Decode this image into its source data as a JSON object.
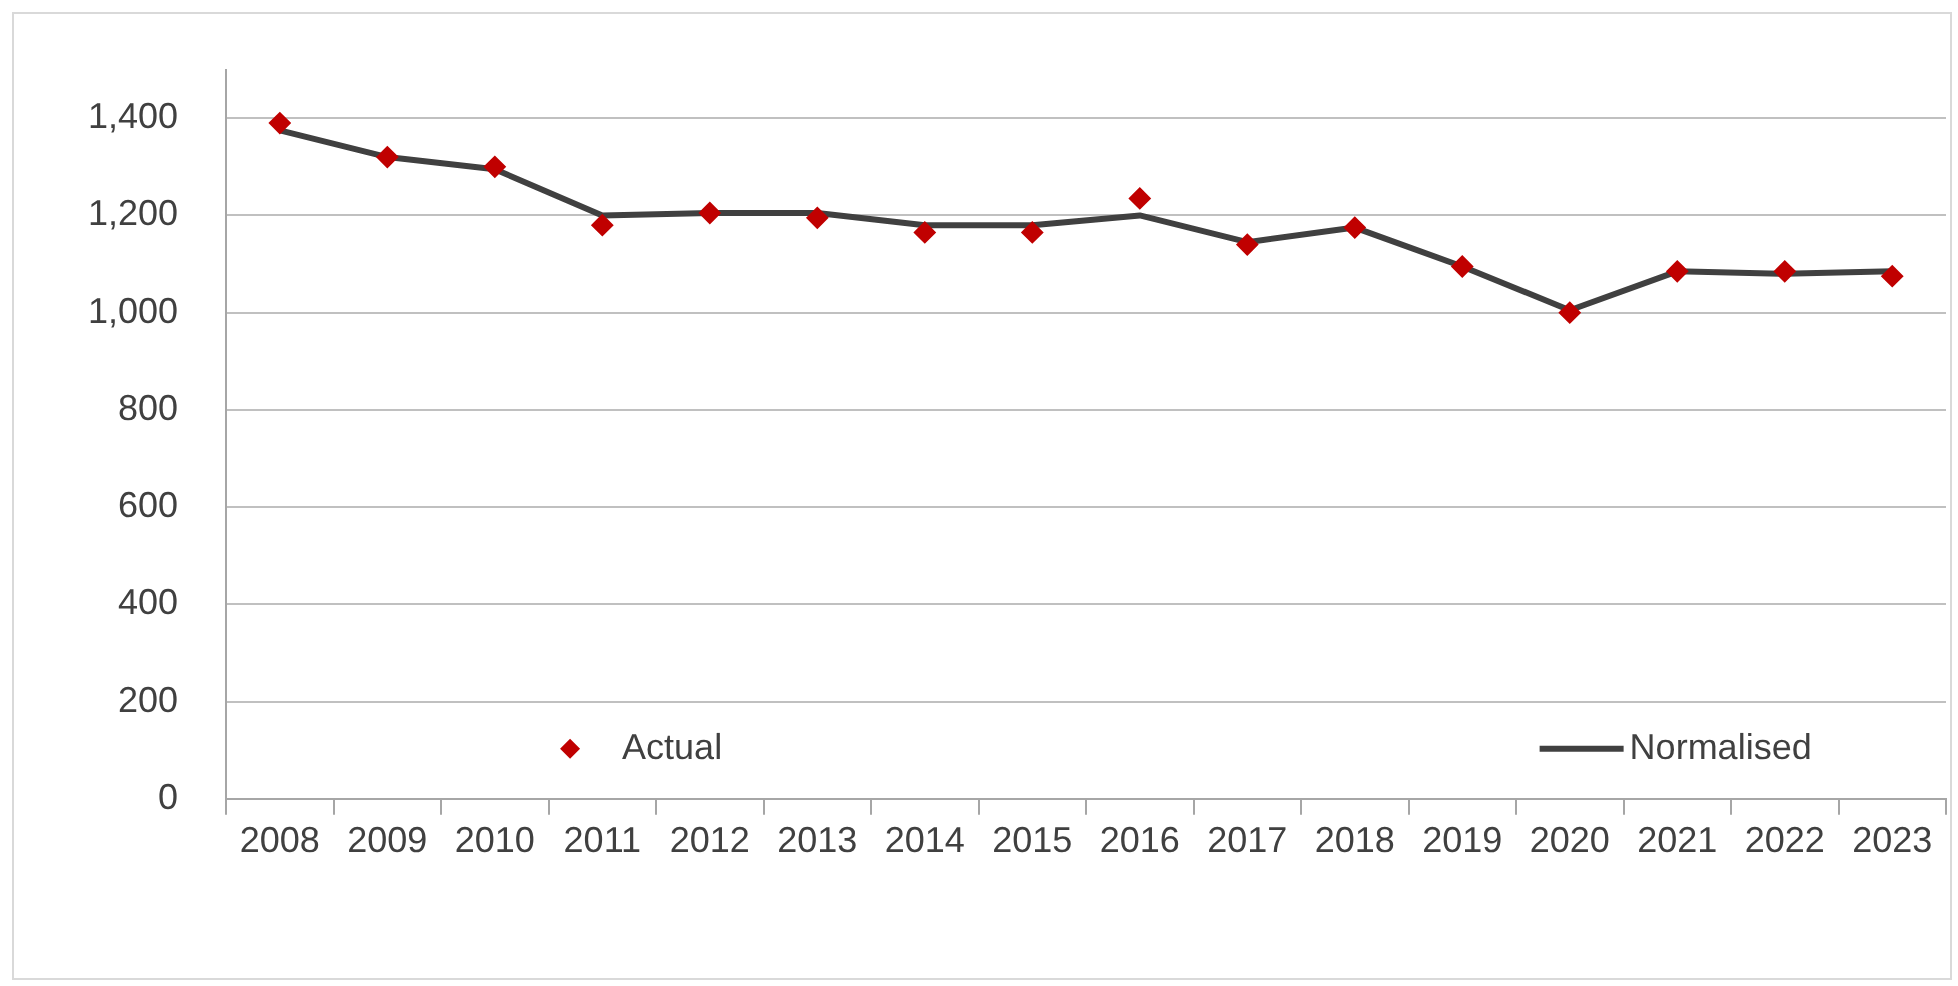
{
  "chart_data": {
    "type": "line",
    "categories": [
      "2008",
      "2009",
      "2010",
      "2011",
      "2012",
      "2013",
      "2014",
      "2015",
      "2016",
      "2017",
      "2018",
      "2019",
      "2020",
      "2021",
      "2022",
      "2023"
    ],
    "series": [
      {
        "name": "Actual",
        "type": "scatter",
        "color": "#c00000",
        "marker": "diamond",
        "values": [
          1390,
          1320,
          1300,
          1180,
          1205,
          1195,
          1165,
          1165,
          1235,
          1140,
          1175,
          1095,
          1000,
          1085,
          1085,
          1075
        ]
      },
      {
        "name": "Normalised",
        "color": "#404040",
        "marker": "none",
        "line_style": "solid",
        "values": [
          1375,
          1320,
          1295,
          1200,
          1205,
          1205,
          1180,
          1180,
          1200,
          1145,
          1175,
          1095,
          1005,
          1085,
          1080,
          1085
        ]
      }
    ],
    "ylim": [
      0,
      1500
    ],
    "yticks": [
      {
        "value": 0,
        "label": "0"
      },
      {
        "value": 200,
        "label": "200"
      },
      {
        "value": 400,
        "label": "400"
      },
      {
        "value": 600,
        "label": "600"
      },
      {
        "value": 800,
        "label": "800"
      },
      {
        "value": 1000,
        "label": "1,000"
      },
      {
        "value": 1200,
        "label": "1,200"
      },
      {
        "value": 1400,
        "label": "1,400"
      }
    ],
    "grid": "y",
    "legend": "bottom"
  }
}
